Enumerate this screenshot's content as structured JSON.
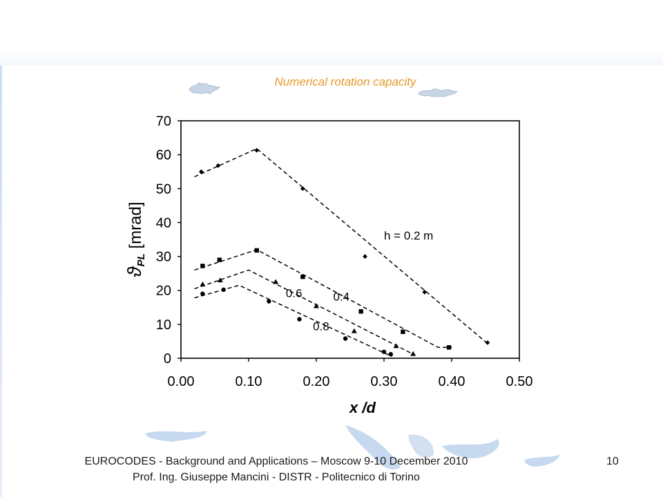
{
  "slide": {
    "title": "Numerical rotation capacity",
    "footer_line1": "EUROCODES - Background and Applications – Moscow 9-10 December 2010",
    "footer_line2": "Prof. Ing. Giuseppe Mancini - DISTR - Politecnico di Torino",
    "page_number": "10",
    "accent_color": "#e59a2a"
  },
  "chart_data": {
    "type": "scatter",
    "title": "",
    "xlabel": "x /d",
    "ylabel_symbol": "ϑ",
    "ylabel_subscript": "PL",
    "ylabel_unit": "[mrad]",
    "xlim": [
      0.0,
      0.5
    ],
    "ylim": [
      0,
      70
    ],
    "x_ticks": [
      "0.00",
      "0.10",
      "0.20",
      "0.30",
      "0.40",
      "0.50"
    ],
    "y_ticks": [
      "0",
      "10",
      "20",
      "30",
      "40",
      "50",
      "60",
      "70"
    ],
    "grid": false,
    "series": [
      {
        "name": "h = 0.2 m",
        "marker": "diamond",
        "points": [
          [
            0.03,
            55
          ],
          [
            0.055,
            56.8
          ],
          [
            0.112,
            61.3
          ],
          [
            0.18,
            50
          ],
          [
            0.272,
            30
          ],
          [
            0.36,
            19.5
          ],
          [
            0.453,
            4.6
          ]
        ],
        "trend": [
          [
            0.02,
            53.5
          ],
          [
            0.112,
            61.8
          ],
          [
            0.455,
            4.0
          ]
        ],
        "label_pos": [
          0.3,
          35
        ]
      },
      {
        "name": "0.4",
        "marker": "square",
        "points": [
          [
            0.032,
            27.2
          ],
          [
            0.057,
            29
          ],
          [
            0.112,
            31.8
          ],
          [
            0.18,
            24
          ],
          [
            0.266,
            13.8
          ],
          [
            0.328,
            7.8
          ],
          [
            0.396,
            3.2
          ]
        ],
        "trend": [
          [
            0.02,
            26.0
          ],
          [
            0.112,
            32.0
          ],
          [
            0.21,
            21.5
          ],
          [
            0.38,
            3.2
          ],
          [
            0.4,
            3.2
          ]
        ],
        "label_pos": [
          0.225,
          17.0
        ]
      },
      {
        "name": "0.6",
        "marker": "triangle",
        "points": [
          [
            0.032,
            21.8
          ],
          [
            0.058,
            23
          ],
          [
            0.14,
            22.5
          ],
          [
            0.2,
            15.4
          ],
          [
            0.256,
            8
          ],
          [
            0.318,
            3.6
          ],
          [
            0.343,
            1.3
          ]
        ],
        "trend": [
          [
            0.02,
            20.5
          ],
          [
            0.1,
            26.0
          ],
          [
            0.345,
            1.0
          ]
        ],
        "label_pos": [
          0.155,
          18.0
        ]
      },
      {
        "name": "0.8",
        "marker": "circle",
        "points": [
          [
            0.032,
            19
          ],
          [
            0.063,
            20.2
          ],
          [
            0.13,
            16.8
          ],
          [
            0.175,
            11.5
          ],
          [
            0.243,
            5.8
          ],
          [
            0.3,
            1.9
          ],
          [
            0.31,
            1.2
          ]
        ],
        "trend": [
          [
            0.02,
            17.8
          ],
          [
            0.086,
            21.5
          ],
          [
            0.312,
            0.5
          ]
        ],
        "label_pos": [
          0.195,
          8.2
        ]
      }
    ]
  }
}
